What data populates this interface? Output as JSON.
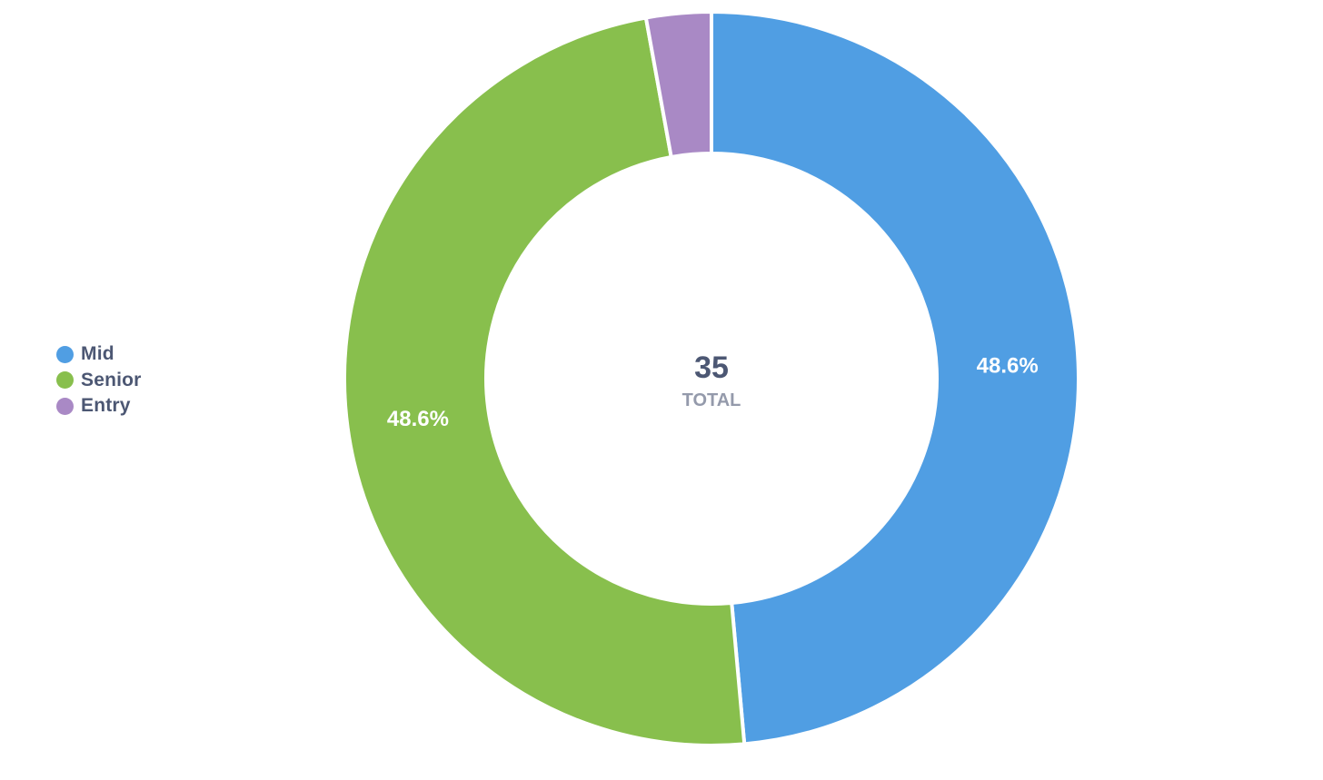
{
  "chart_data": {
    "type": "pie",
    "variant": "donut",
    "total": 35,
    "total_caption": "TOTAL",
    "legend_placement": "left",
    "categories": [
      "Mid",
      "Senior",
      "Entry"
    ],
    "values": [
      17,
      17,
      1
    ],
    "colors": [
      "#509ee3",
      "#88bf4d",
      "#a989c5"
    ],
    "data_labels": [
      "48.6%",
      "48.6%",
      ""
    ]
  },
  "legend": {
    "items": [
      {
        "label": "Mid",
        "color": "#509ee3"
      },
      {
        "label": "Senior",
        "color": "#88bf4d"
      },
      {
        "label": "Entry",
        "color": "#a989c5"
      }
    ]
  },
  "center": {
    "value": "35",
    "caption": "TOTAL"
  }
}
